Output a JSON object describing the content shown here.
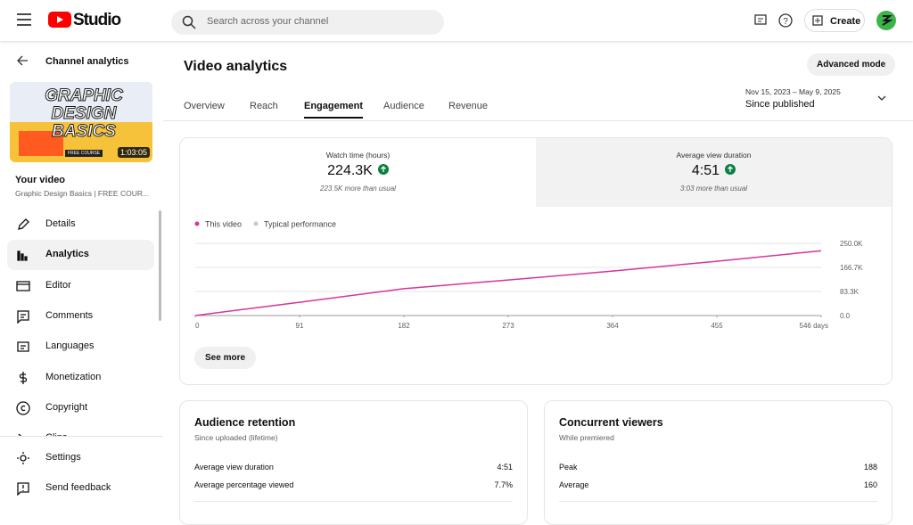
{
  "header": {
    "logo": "Studio",
    "search_placeholder": "Search across your channel",
    "create": "Create"
  },
  "sidebar": {
    "back": "Channel analytics",
    "thumbnail": {
      "lines": [
        "GRAPHIC",
        "DESIGN",
        "BASICS"
      ],
      "badge": "FREE COURSE",
      "duration": "1:03:05"
    },
    "your_video": "Your video",
    "video_title": "Graphic Design Basics | FREE COUR...",
    "nav": [
      "Details",
      "Analytics",
      "Editor",
      "Comments",
      "Languages",
      "Monetization",
      "Copyright",
      "Clips"
    ],
    "footer": [
      "Settings",
      "Send feedback"
    ]
  },
  "main": {
    "title": "Video analytics",
    "advanced": "Advanced mode",
    "tabs": [
      "Overview",
      "Reach",
      "Engagement",
      "Audience",
      "Revenue"
    ],
    "date_range": "Nov 15, 2023 – May 9, 2025",
    "period": "Since published",
    "metrics": [
      {
        "label": "Watch time (hours)",
        "value": "224.3K",
        "note": "223.5K more than usual"
      },
      {
        "label": "Average view duration",
        "value": "4:51",
        "note": "3:03 more than usual"
      }
    ],
    "see_more": "See more",
    "cards": [
      {
        "title": "Audience retention",
        "subtitle": "Since uploaded (lifetime)",
        "rows": [
          [
            "Average view duration",
            "4:51"
          ],
          [
            "Average percentage viewed",
            "7.7%"
          ]
        ]
      },
      {
        "title": "Concurrent viewers",
        "subtitle": "While premiered",
        "rows": [
          [
            "Peak",
            "188"
          ],
          [
            "Average",
            "160"
          ]
        ]
      }
    ]
  },
  "chart_data": {
    "type": "line",
    "legend": [
      {
        "name": "This video",
        "color": "#d6359b"
      },
      {
        "name": "Typical performance",
        "color": "#c8c8c8"
      }
    ],
    "x": [
      0,
      91,
      182,
      273,
      364,
      455,
      546
    ],
    "series": [
      {
        "name": "This video",
        "color": "#d6359b",
        "values": [
          0,
          46000,
          93000,
          123000,
          154000,
          188000,
          224300
        ]
      }
    ],
    "xlim": [
      0,
      546
    ],
    "xticks": [
      0,
      91,
      182,
      273,
      364,
      455,
      {
        "value": 546,
        "label": "546 days"
      }
    ],
    "ylim": [
      0,
      250000
    ],
    "yticks": [
      {
        "value": 0,
        "label": "0.0"
      },
      {
        "value": 83300,
        "label": "83.3K"
      },
      {
        "value": 166700,
        "label": "166.7K"
      },
      {
        "value": 250000,
        "label": "250.0K"
      }
    ],
    "grid": true
  }
}
